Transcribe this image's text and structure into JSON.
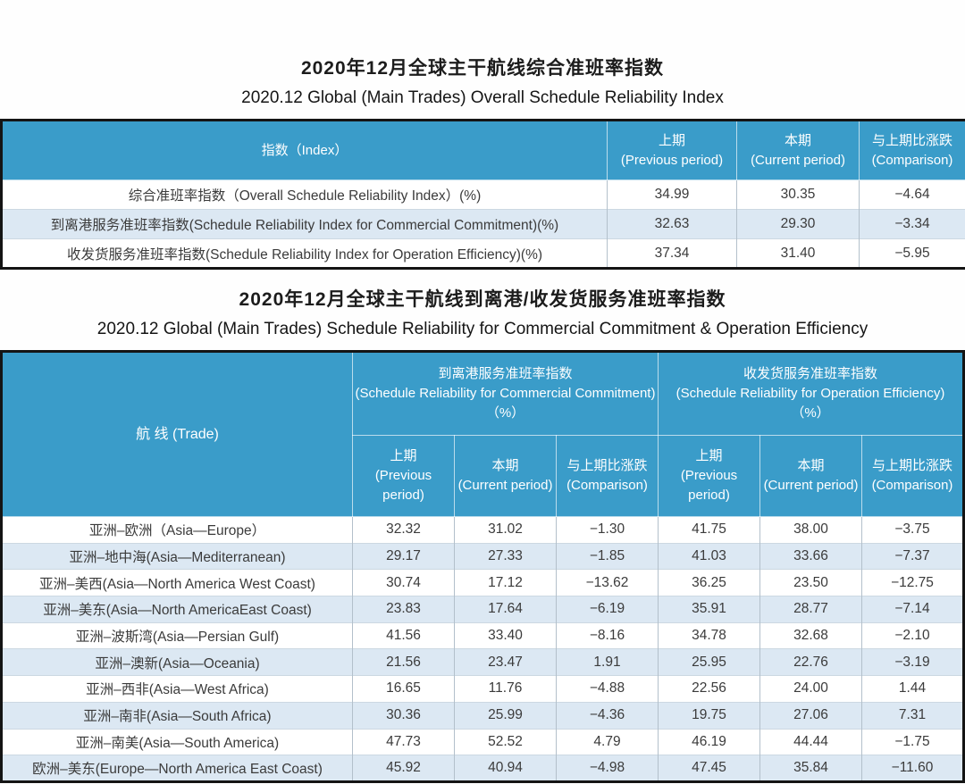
{
  "colors": {
    "header_bg": "#3a9cc9",
    "zebra_bg": "#dce8f3",
    "outer_border": "#141414",
    "body_text": "#3b3b3b"
  },
  "section1": {
    "title_cn": "2020年12月全球主干航线综合准班率指数",
    "title_en": "2020.12 Global (Main Trades) Overall Schedule Reliability Index",
    "table": {
      "col_index": "指数（Index）",
      "col_prev_cn": "上期",
      "col_prev_en": "(Previous period)",
      "col_curr_cn": "本期",
      "col_curr_en": "(Current period)",
      "col_diff_cn": "与上期比涨跌",
      "col_diff_en": "(Comparison)",
      "rows": [
        {
          "label": "综合准班率指数（Overall Schedule Reliability Index）(%)",
          "prev": "34.99",
          "curr": "30.35",
          "diff": "−4.64"
        },
        {
          "label": "到离港服务准班率指数(Schedule Reliability Index for Commercial Commitment)(%)",
          "prev": "32.63",
          "curr": "29.30",
          "diff": "−3.34"
        },
        {
          "label": "收发货服务准班率指数(Schedule Reliability Index for Operation Efficiency)(%)",
          "prev": "37.34",
          "curr": "31.40",
          "diff": "−5.95"
        }
      ]
    }
  },
  "section2": {
    "title_cn": "2020年12月全球主干航线到离港/收发货服务准班率指数",
    "title_en": "2020.12 Global (Main Trades) Schedule Reliability for Commercial Commitment & Operation Efficiency",
    "table": {
      "col_trade": "航 线 (Trade)",
      "group1_cn": "到离港服务准班率指数",
      "group1_en": "(Schedule Reliability for Commercial Commitment)（%）",
      "group2_cn": "收发货服务准班率指数",
      "group2_en": "(Schedule Reliability for Operation Efficiency)（%）",
      "sub_prev_cn": "上期",
      "sub_prev_en": "(Previous period)",
      "sub_curr_cn": "本期",
      "sub_curr_en": "(Current period)",
      "sub_diff_cn": "与上期比涨跌",
      "sub_diff_en": "(Comparison)",
      "rows": [
        {
          "trade": "亚洲–欧洲（Asia—Europe）",
          "p1": "32.32",
          "c1": "31.02",
          "d1": "−1.30",
          "p2": "41.75",
          "c2": "38.00",
          "d2": "−3.75"
        },
        {
          "trade": "亚洲–地中海(Asia—Mediterranean)",
          "p1": "29.17",
          "c1": "27.33",
          "d1": "−1.85",
          "p2": "41.03",
          "c2": "33.66",
          "d2": "−7.37"
        },
        {
          "trade": "亚洲–美西(Asia—North America West Coast)",
          "p1": "30.74",
          "c1": "17.12",
          "d1": "−13.62",
          "p2": "36.25",
          "c2": "23.50",
          "d2": "−12.75"
        },
        {
          "trade": "亚洲–美东(Asia—North AmericaEast Coast)",
          "p1": "23.83",
          "c1": "17.64",
          "d1": "−6.19",
          "p2": "35.91",
          "c2": "28.77",
          "d2": "−7.14"
        },
        {
          "trade": "亚洲–波斯湾(Asia—Persian Gulf)",
          "p1": "41.56",
          "c1": "33.40",
          "d1": "−8.16",
          "p2": "34.78",
          "c2": "32.68",
          "d2": "−2.10"
        },
        {
          "trade": "亚洲–澳新(Asia—Oceania)",
          "p1": "21.56",
          "c1": "23.47",
          "d1": "1.91",
          "p2": "25.95",
          "c2": "22.76",
          "d2": "−3.19"
        },
        {
          "trade": "亚洲–西非(Asia—West Africa)",
          "p1": "16.65",
          "c1": "11.76",
          "d1": "−4.88",
          "p2": "22.56",
          "c2": "24.00",
          "d2": "1.44"
        },
        {
          "trade": "亚洲–南非(Asia—South Africa)",
          "p1": "30.36",
          "c1": "25.99",
          "d1": "−4.36",
          "p2": "19.75",
          "c2": "27.06",
          "d2": "7.31"
        },
        {
          "trade": "亚洲–南美(Asia—South America)",
          "p1": "47.73",
          "c1": "52.52",
          "d1": "4.79",
          "p2": "46.19",
          "c2": "44.44",
          "d2": "−1.75"
        },
        {
          "trade": "欧洲–美东(Europe—North America East Coast)",
          "p1": "45.92",
          "c1": "40.94",
          "d1": "−4.98",
          "p2": "47.45",
          "c2": "35.84",
          "d2": "−11.60"
        }
      ]
    }
  }
}
